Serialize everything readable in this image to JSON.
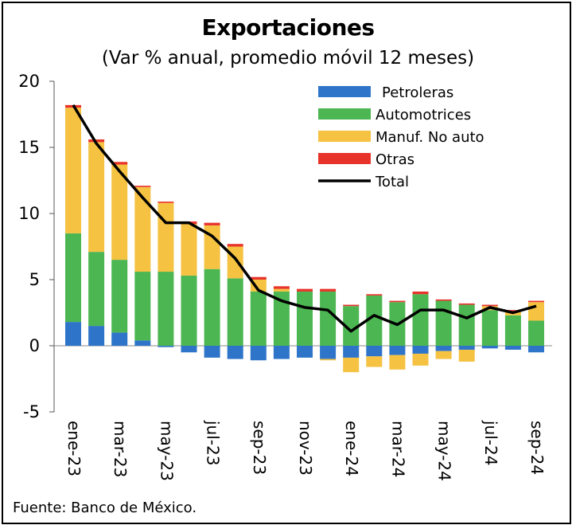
{
  "title": "Exportaciones",
  "subtitle": "(Var % anual, promedio móvil 12 meses)",
  "source": "Fuente: Banco de México.",
  "colors": {
    "Petroleras": "#2e75c9",
    "Automotrices": "#4cb652",
    "Manuf. No auto": "#f5c242",
    "Otras": "#e8332a",
    "Total": "#000000"
  },
  "chart_data": {
    "type": "bar",
    "stacked": true,
    "title": "Exportaciones",
    "subtitle": "(Var % anual, promedio móvil 12 meses)",
    "categories": [
      "ene-23",
      "feb-23",
      "mar-23",
      "abr-23",
      "may-23",
      "jun-23",
      "jul-23",
      "ago-23",
      "sep-23",
      "oct-23",
      "nov-23",
      "dic-23",
      "ene-24",
      "feb-24",
      "mar-24",
      "abr-24",
      "may-24",
      "jun-24",
      "jul-24",
      "ago-24",
      "sep-24"
    ],
    "x_tick_labels": [
      "ene-23",
      "mar-23",
      "may-23",
      "jul-23",
      "sep-23",
      "nov-23",
      "ene-24",
      "mar-24",
      "may-24",
      "jul-24",
      "sep-24"
    ],
    "ylim": [
      -5,
      20
    ],
    "yticks": [
      -5,
      0,
      5,
      10,
      15,
      20
    ],
    "legend_position": "top-right",
    "series": [
      {
        "name": "Petroleras",
        "kind": "bar",
        "values": [
          1.8,
          1.5,
          1.0,
          0.4,
          -0.1,
          -0.5,
          -0.9,
          -1.0,
          -1.1,
          -1.0,
          -0.9,
          -1.0,
          -0.9,
          -0.8,
          -0.7,
          -0.6,
          -0.4,
          -0.3,
          -0.2,
          -0.3,
          -0.5
        ]
      },
      {
        "name": "Automotrices",
        "kind": "bar",
        "values": [
          6.7,
          5.6,
          5.5,
          5.2,
          5.6,
          5.3,
          5.8,
          5.1,
          4.1,
          4.1,
          4.1,
          4.1,
          3.0,
          3.8,
          3.3,
          3.9,
          3.4,
          3.1,
          2.7,
          2.3,
          1.9
        ]
      },
      {
        "name": "Manuf. No auto",
        "kind": "bar",
        "values": [
          9.5,
          8.3,
          7.2,
          6.4,
          5.2,
          3.9,
          3.3,
          2.4,
          0.9,
          0.2,
          0.0,
          -0.1,
          -1.1,
          -0.8,
          -1.1,
          -0.9,
          -0.6,
          -0.9,
          0.3,
          0.3,
          1.4
        ]
      },
      {
        "name": "Otras",
        "kind": "bar",
        "values": [
          0.2,
          0.2,
          0.2,
          0.1,
          0.1,
          0.2,
          0.2,
          0.2,
          0.2,
          0.2,
          0.2,
          0.2,
          0.1,
          0.1,
          0.1,
          0.2,
          0.1,
          0.1,
          0.1,
          0.1,
          0.1
        ]
      },
      {
        "name": "Total",
        "kind": "line",
        "values": [
          18.2,
          15.3,
          13.2,
          11.2,
          9.3,
          9.3,
          8.3,
          6.6,
          4.2,
          3.4,
          2.9,
          2.7,
          1.1,
          2.3,
          1.6,
          2.7,
          2.7,
          2.1,
          2.9,
          2.5,
          3.0
        ]
      }
    ]
  }
}
